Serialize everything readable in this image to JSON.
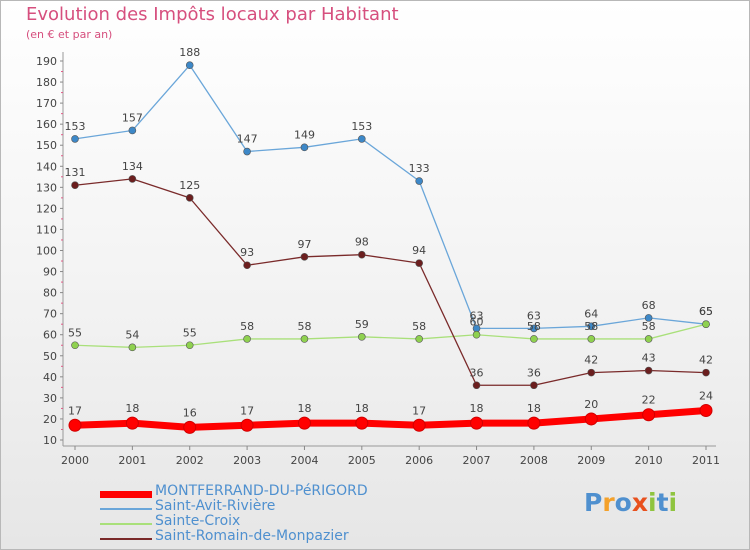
{
  "chart_data": {
    "type": "line",
    "title": "Evolution des Impôts locaux par Habitant",
    "subtitle": "(en € et par an)",
    "categories": [
      "2000",
      "2001",
      "2002",
      "2003",
      "2004",
      "2005",
      "2006",
      "2007",
      "2008",
      "2009",
      "2010",
      "2011"
    ],
    "ylim": [
      10,
      190
    ],
    "yticks": [
      10,
      20,
      30,
      40,
      50,
      60,
      70,
      80,
      90,
      100,
      110,
      120,
      130,
      140,
      150,
      160,
      170,
      180,
      190
    ],
    "grid": false,
    "legend_position": "bottom-left",
    "series": [
      {
        "name": "MONTFERRAND-DU-PéRIGORD",
        "color": "#ff0000",
        "marker_color": "#ff0000",
        "emphasis": true,
        "values": [
          17,
          18,
          16,
          17,
          18,
          18,
          17,
          18,
          18,
          20,
          22,
          24
        ]
      },
      {
        "name": "Saint-Avit-Rivière",
        "color": "#6aa6d9",
        "marker_color": "#3d88c8",
        "values": [
          153,
          157,
          188,
          147,
          149,
          153,
          133,
          63,
          63,
          64,
          68,
          65
        ]
      },
      {
        "name": "Sainte-Croix",
        "color": "#a9e07a",
        "marker_color": "#8fd14f",
        "values": [
          55,
          54,
          55,
          58,
          58,
          59,
          58,
          60,
          58,
          58,
          58,
          65
        ]
      },
      {
        "name": "Saint-Romain-de-Monpazier",
        "color": "#7a2a2a",
        "marker_color": "#6b1e1e",
        "values": [
          131,
          134,
          125,
          93,
          97,
          98,
          94,
          36,
          36,
          42,
          43,
          42
        ]
      }
    ]
  },
  "logo": {
    "text": "Proxiti",
    "colors": [
      "#4f90cf",
      "#f4a12a",
      "#4f90cf",
      "#e8511e",
      "#8fc43f",
      "#4f90cf",
      "#8fc43f"
    ]
  }
}
